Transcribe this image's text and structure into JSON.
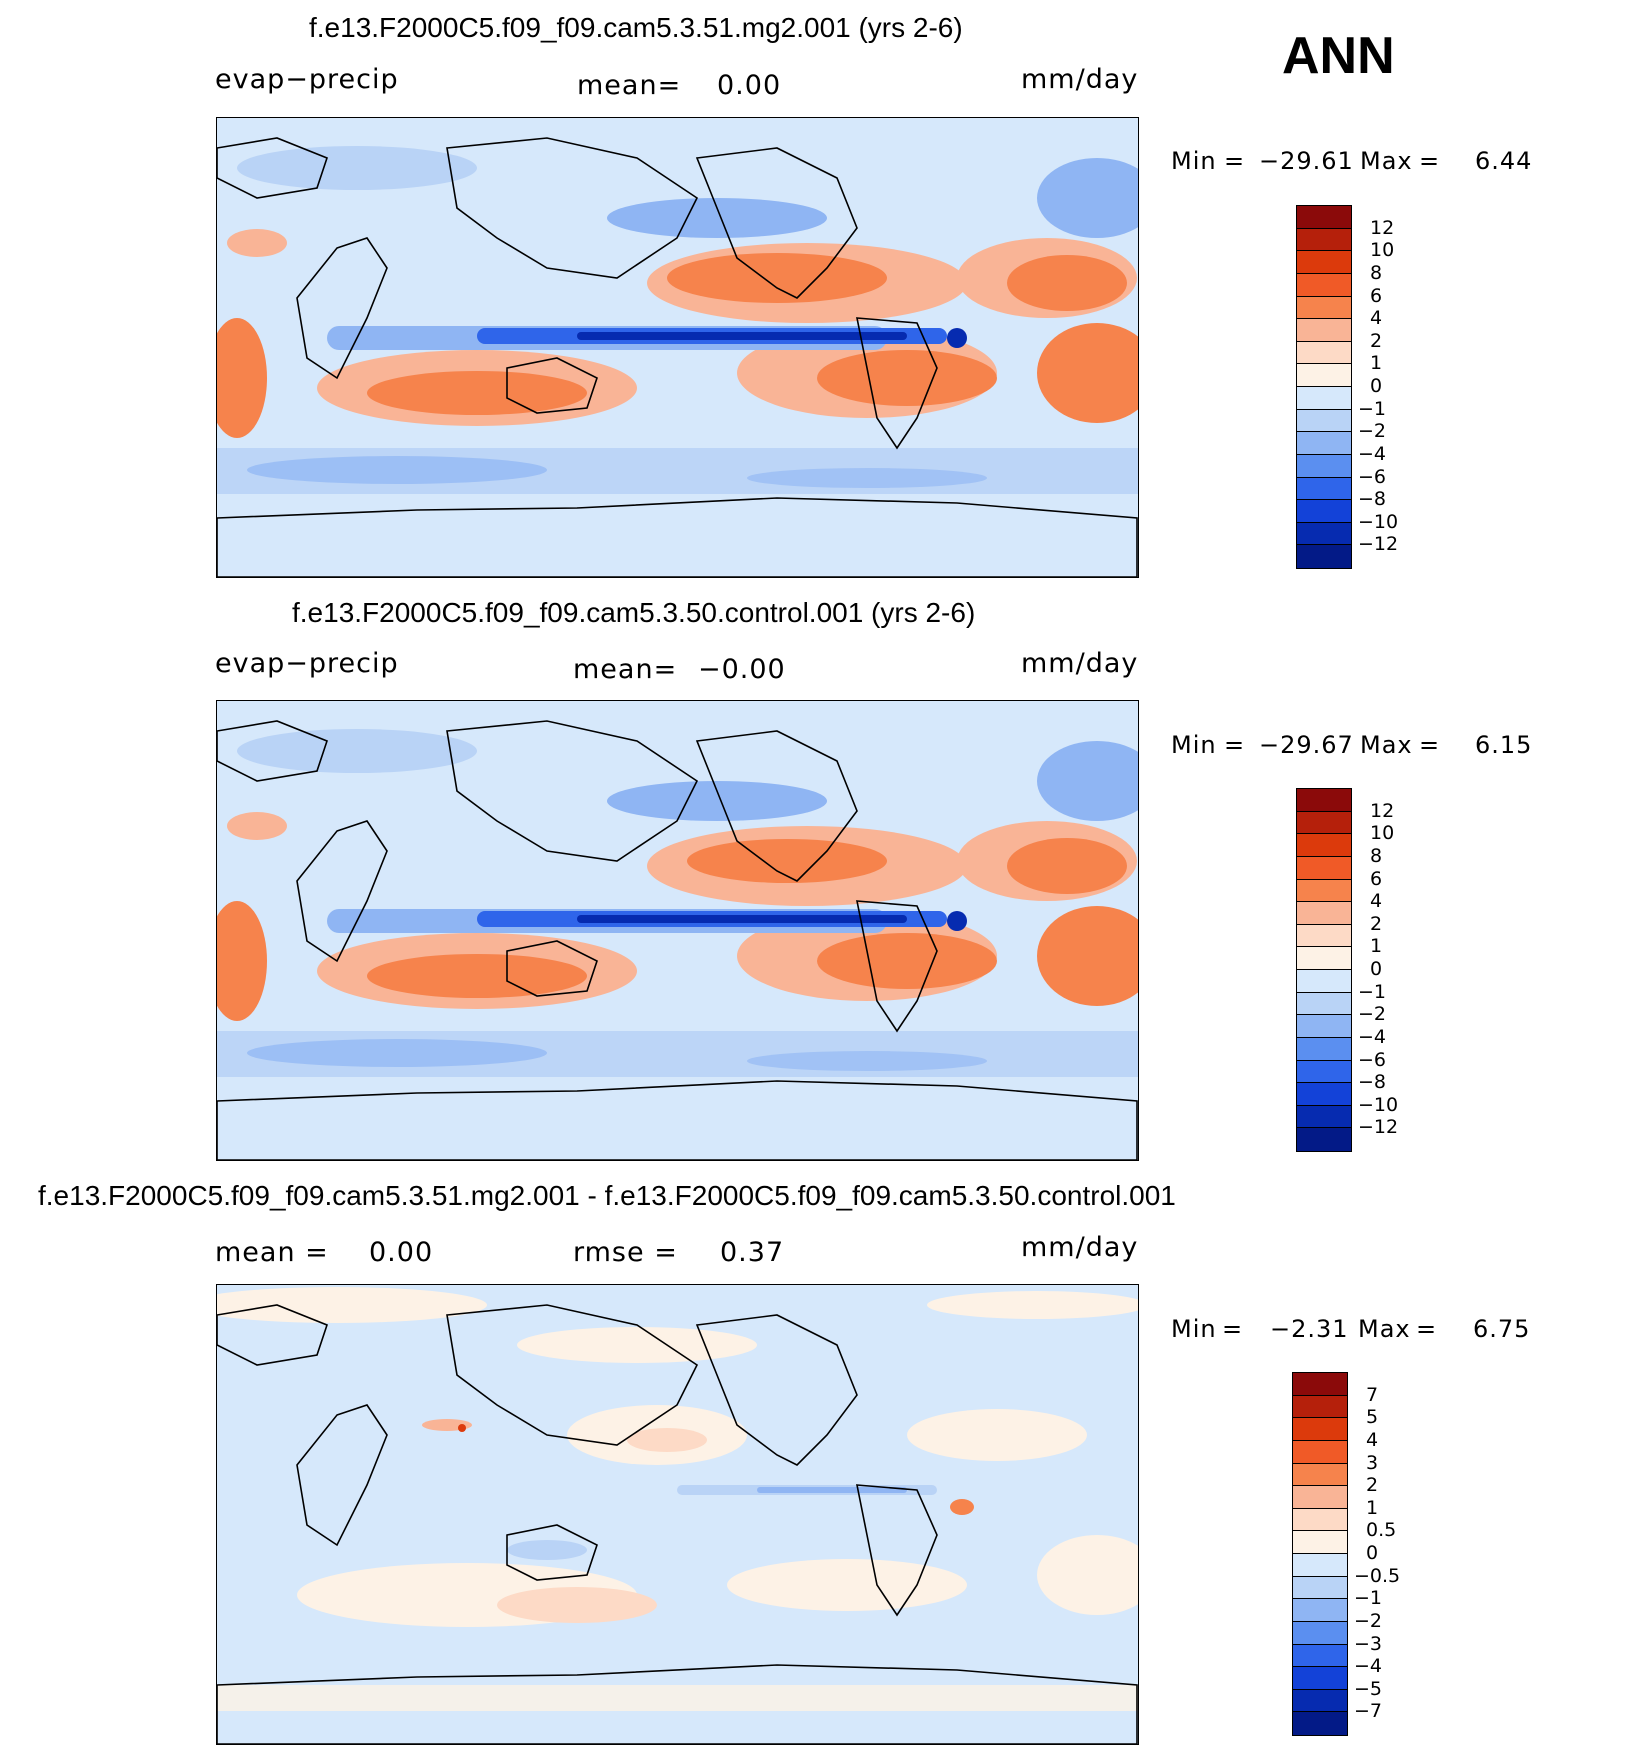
{
  "season": "ANN",
  "colors": {
    "ocean_base": "#d6e8fb",
    "coast": "#000000"
  },
  "panels": [
    {
      "title": "f.e13.F2000C5.f09_f09.cam5.3.51.mg2.001 (yrs 2-6)",
      "left_label": "evap−precip",
      "mean_label": "mean=",
      "mean_value": "0.00",
      "units": "mm/day",
      "min_label": "Min",
      "min_value": "−29.61",
      "max_label": "Max",
      "max_value": "6.44",
      "colorbar": {
        "colors": [
          "#8b0a0a",
          "#b5200b",
          "#dc3a0c",
          "#f05a27",
          "#f6834c",
          "#f9b496",
          "#fddac6",
          "#fdf2e6",
          "#d6e8fb",
          "#b9d3f6",
          "#8fb5f3",
          "#5b8ff0",
          "#2f65ea",
          "#1342d8",
          "#062bb0",
          "#031a87"
        ],
        "labels": [
          "12",
          "10",
          "8",
          "6",
          "4",
          "2",
          "1",
          "0",
          "−1",
          "−2",
          "−4",
          "−6",
          "−8",
          "−10",
          "−12"
        ]
      }
    },
    {
      "title": "f.e13.F2000C5.f09_f09.cam5.3.50.control.001 (yrs 2-6)",
      "left_label": "evap−precip",
      "mean_label": "mean=",
      "mean_value": "−0.00",
      "units": "mm/day",
      "min_label": "Min",
      "min_value": "−29.67",
      "max_label": "Max",
      "max_value": "6.15",
      "colorbar": {
        "colors": [
          "#8b0a0a",
          "#b5200b",
          "#dc3a0c",
          "#f05a27",
          "#f6834c",
          "#f9b496",
          "#fddac6",
          "#fdf2e6",
          "#d6e8fb",
          "#b9d3f6",
          "#8fb5f3",
          "#5b8ff0",
          "#2f65ea",
          "#1342d8",
          "#062bb0",
          "#031a87"
        ],
        "labels": [
          "12",
          "10",
          "8",
          "6",
          "4",
          "2",
          "1",
          "0",
          "−1",
          "−2",
          "−4",
          "−6",
          "−8",
          "−10",
          "−12"
        ]
      }
    },
    {
      "title": "f.e13.F2000C5.f09_f09.cam5.3.51.mg2.001 - f.e13.F2000C5.f09_f09.cam5.3.50.control.001",
      "left_label": "mean  =",
      "mean_label": "rmse  =",
      "left_value": "0.00",
      "mean_value": "0.37",
      "units": "mm/day",
      "min_label": "Min",
      "min_value": "−2.31",
      "max_label": "Max",
      "max_value": "6.75",
      "colorbar": {
        "colors": [
          "#8b0a0a",
          "#b5200b",
          "#dc3a0c",
          "#f05a27",
          "#f6834c",
          "#f9b496",
          "#fddac6",
          "#fdf2e6",
          "#d6e8fb",
          "#b9d3f6",
          "#8fb5f3",
          "#5b8ff0",
          "#2f65ea",
          "#1342d8",
          "#062bb0",
          "#031a87"
        ],
        "labels": [
          "7",
          "5",
          "4",
          "3",
          "2",
          "1",
          "0.5",
          "0",
          "−0.5",
          "−1",
          "−2",
          "−3",
          "−4",
          "−5",
          "−7"
        ]
      }
    }
  ]
}
